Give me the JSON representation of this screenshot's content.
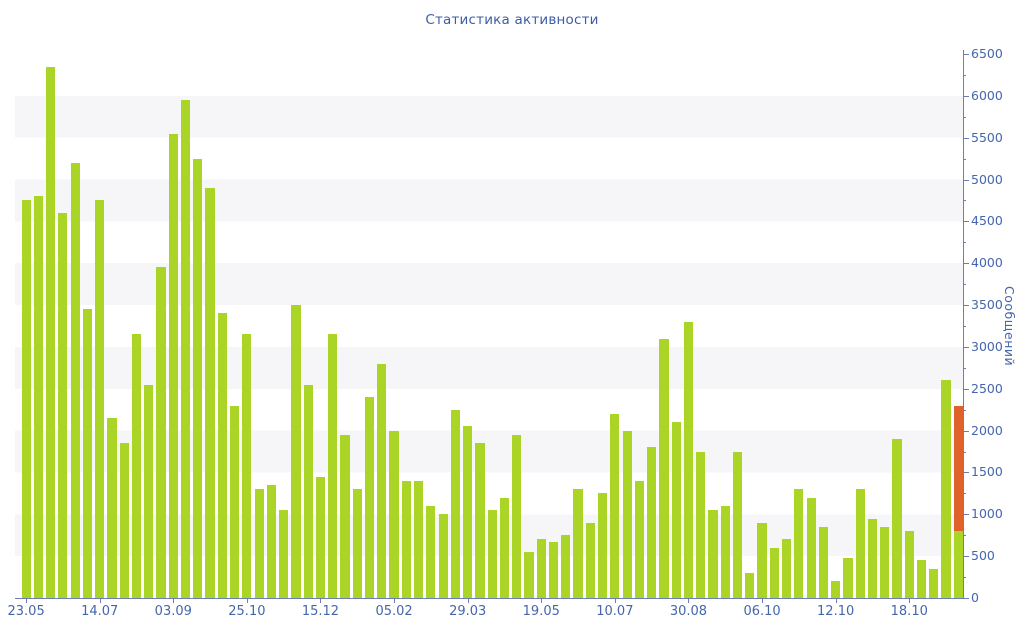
{
  "title": "Статистика активности",
  "colors": {
    "bar_green": "#aad426",
    "bar_orange": "#e0622b",
    "axis_line": "#6e7cb8",
    "label_blue": "#4566ad",
    "title_blue": "#3e5ca6",
    "stripe_gray": "#f6f6f8",
    "background": "#ffffff"
  },
  "y_axis": {
    "title": "Сообщений",
    "min": 0,
    "max": 6500,
    "major_step": 500,
    "minor_step": 250,
    "tick_labels": [
      "0",
      "500",
      "1000",
      "1500",
      "2000",
      "2500",
      "3000",
      "3500",
      "4000",
      "4500",
      "5000",
      "5500",
      "6000",
      "6500"
    ]
  },
  "x_axis": {
    "labels": [
      "23.05",
      "14.07",
      "03.09",
      "25.10",
      "15.12",
      "05.02",
      "29.03",
      "19.05",
      "10.07",
      "30.08",
      "06.10",
      "12.10",
      "18.10"
    ],
    "label_every_n_bars": 6,
    "first_labeled_bar_index": 0
  },
  "chart_data": {
    "type": "bar",
    "title": "Статистика активности",
    "xlabel": "",
    "ylabel": "Сообщений",
    "ylim": [
      0,
      6500
    ],
    "grid": "horizontal stripe bands each 500 units (gray bands at 500-1000, 1500-2000, 2500-3000, 3500-4000, 4500-5000, 5500-6000)",
    "legend": "none",
    "categories_note": "77 consecutive weekly bars; every 6th bar is labeled with a date",
    "x_tick_labels": [
      "23.05",
      "14.07",
      "03.09",
      "25.10",
      "15.12",
      "05.02",
      "29.03",
      "19.05",
      "10.07",
      "30.08",
      "06.10",
      "12.10",
      "18.10"
    ],
    "values": [
      4750,
      4800,
      6350,
      4600,
      5200,
      3450,
      4750,
      2150,
      1850,
      3150,
      2550,
      3950,
      5550,
      5950,
      5250,
      4900,
      3400,
      2300,
      3150,
      1300,
      1350,
      1050,
      3500,
      2550,
      1450,
      3150,
      1950,
      1300,
      2400,
      2800,
      2000,
      1400,
      1400,
      1100,
      1000,
      2250,
      2050,
      1850,
      1050,
      1200,
      1950,
      550,
      700,
      675,
      750,
      1300,
      900,
      1250,
      2200,
      2000,
      1400,
      1800,
      3100,
      2100,
      3300,
      1750,
      1050,
      1100,
      1750,
      300,
      900,
      600,
      700,
      1300,
      1200,
      850,
      200,
      475,
      1300,
      950,
      850,
      1900,
      800,
      450,
      350,
      2600,
      {
        "segments": [
          {
            "value": 800,
            "color_key": "bar_green"
          },
          {
            "value": 1500,
            "color_key": "bar_orange"
          }
        ],
        "total": 2300
      }
    ]
  }
}
